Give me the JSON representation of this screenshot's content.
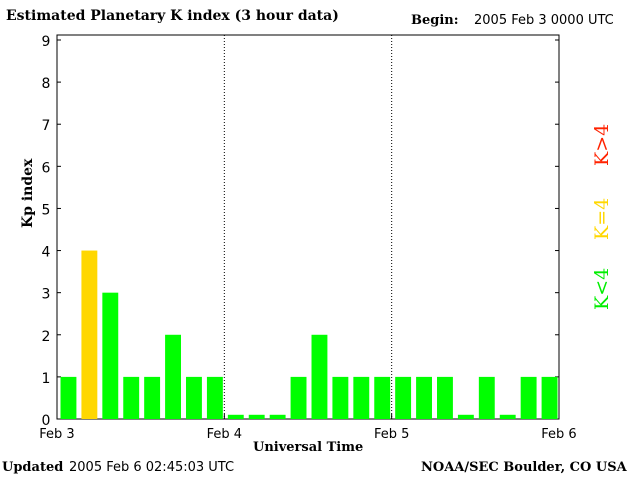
{
  "header": {
    "title": "Estimated Planetary K index (3 hour data)",
    "begin_label": "Begin:",
    "begin_value": "2005 Feb 3 0000 UTC"
  },
  "footer": {
    "updated_label": "Updated",
    "updated_value": "2005 Feb  6 02:45:03 UTC",
    "org": "NOAA/SEC Boulder, CO USA"
  },
  "legend": {
    "low": "K<4",
    "eq": "K=4",
    "high": "K>4"
  },
  "colors": {
    "low": "#00ff00",
    "eq": "#ffd700",
    "high": "#ff2200"
  },
  "chart_data": {
    "type": "bar",
    "title": "Estimated Planetary K index (3 hour data)",
    "xlabel": "Universal Time",
    "ylabel": "Kp index",
    "ylim": [
      0,
      9
    ],
    "yticks": [
      "0",
      "1",
      "2",
      "3",
      "4",
      "5",
      "6",
      "7",
      "8",
      "9"
    ],
    "xticks": [
      "Feb 3",
      "Feb 4",
      "Feb 5",
      "Feb 6"
    ],
    "values": [
      1,
      4,
      3,
      1,
      1,
      2,
      1,
      1,
      0.1,
      0.1,
      0.1,
      1,
      2,
      1,
      1,
      1,
      1,
      1,
      1,
      0.1,
      1,
      0.1,
      1,
      1
    ],
    "grid": "vertical dotted lines at day boundaries"
  }
}
